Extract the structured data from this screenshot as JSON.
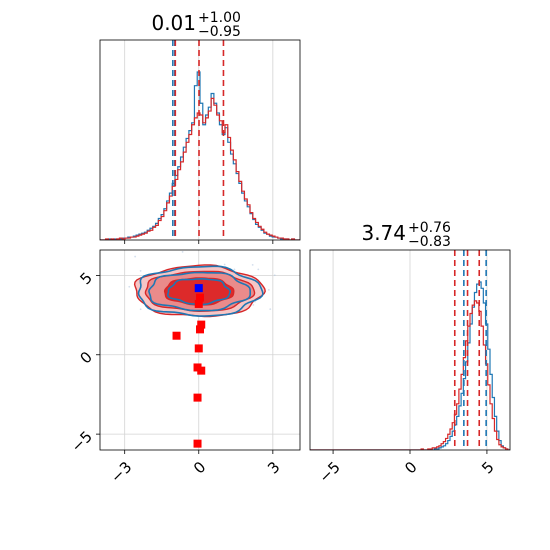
{
  "chart_data": {
    "type": "corner",
    "grid": true,
    "params": [
      {
        "title_value": "0.01",
        "title_upper": "+1.00",
        "title_lower": "−0.95",
        "xlim": [
          -4,
          4.1
        ],
        "ticks": [
          -3,
          0,
          3
        ],
        "tick_labels": [
          "−3",
          "0",
          "3"
        ],
        "quantiles_red": [
          -0.95,
          0.01,
          1.0
        ],
        "quantiles_blue": [
          -1.05,
          -0.97
        ],
        "hist_red": {
          "edges_min": -4,
          "edges_max": 4.1,
          "counts": [
            0,
            0,
            1,
            0,
            1,
            0,
            1,
            2,
            1,
            2,
            2,
            3,
            3,
            4,
            5,
            6,
            7,
            9,
            10,
            13,
            15,
            20,
            24,
            30,
            38,
            45,
            55,
            62,
            72,
            80,
            90,
            100,
            108,
            118,
            125,
            130,
            128,
            120,
            125,
            132,
            145,
            138,
            128,
            122,
            110,
            118,
            105,
            92,
            82,
            70,
            60,
            50,
            42,
            36,
            28,
            22,
            18,
            14,
            11,
            8,
            6,
            5,
            4,
            3,
            2,
            2,
            1,
            1,
            0,
            1,
            0,
            0
          ]
        },
        "hist_blue": {
          "edges_min": -4,
          "edges_max": 4.1,
          "counts": [
            0,
            0,
            0,
            1,
            0,
            1,
            1,
            1,
            2,
            2,
            3,
            3,
            4,
            5,
            6,
            7,
            8,
            10,
            12,
            14,
            17,
            22,
            26,
            32,
            40,
            48,
            58,
            66,
            75,
            85,
            95,
            104,
            112,
            120,
            158,
            172,
            140,
            118,
            128,
            136,
            150,
            140,
            130,
            118,
            108,
            115,
            100,
            88,
            78,
            68,
            58,
            48,
            40,
            34,
            27,
            21,
            16,
            13,
            10,
            7,
            6,
            4,
            3,
            3,
            2,
            1,
            1,
            1,
            0,
            1,
            0,
            0
          ]
        }
      },
      {
        "title_value": "3.74",
        "title_upper": "+0.76",
        "title_lower": "−0.83",
        "xlim": [
          -6.5,
          6.5
        ],
        "ticks": [
          -5,
          0,
          5
        ],
        "tick_labels": [
          "−5",
          "0",
          "5"
        ],
        "quantiles_red": [
          2.91,
          3.74,
          4.5
        ],
        "quantiles_blue": [
          3.5,
          4.95
        ],
        "hist_red": {
          "edges_min": -6.5,
          "edges_max": 6.5,
          "counts": [
            0,
            0,
            0,
            0,
            0,
            0,
            0,
            0,
            0,
            0,
            0,
            0,
            0,
            0,
            0,
            0,
            0,
            0,
            0,
            0,
            0,
            0,
            0,
            0,
            0,
            0,
            0,
            0,
            0,
            0,
            0,
            0,
            0,
            0,
            0,
            0,
            0,
            0,
            0,
            0,
            0,
            0,
            0,
            0,
            0,
            0,
            0,
            0,
            0,
            0,
            1,
            0,
            0,
            1,
            1,
            2,
            2,
            3,
            4,
            6,
            8,
            11,
            15,
            20,
            26,
            34,
            44,
            58,
            72,
            88,
            104,
            118,
            130,
            138,
            142,
            140,
            132,
            118,
            100,
            82,
            62,
            44,
            30,
            18,
            10,
            5,
            3,
            2,
            1,
            0
          ]
        },
        "hist_blue": {
          "edges_min": -6.5,
          "edges_max": 6.5,
          "counts": [
            0,
            0,
            0,
            0,
            0,
            0,
            0,
            0,
            0,
            0,
            0,
            0,
            0,
            0,
            0,
            0,
            0,
            0,
            0,
            0,
            0,
            0,
            0,
            0,
            0,
            0,
            0,
            0,
            0,
            0,
            0,
            0,
            0,
            0,
            0,
            0,
            0,
            0,
            0,
            0,
            0,
            0,
            0,
            0,
            0,
            0,
            0,
            0,
            0,
            0,
            0,
            0,
            0,
            0,
            0,
            0,
            1,
            1,
            2,
            3,
            4,
            6,
            9,
            13,
            18,
            24,
            32,
            42,
            54,
            68,
            84,
            102,
            120,
            136,
            150,
            158,
            160,
            154,
            140,
            120,
            96,
            72,
            50,
            32,
            18,
            9,
            4,
            2,
            1,
            0
          ]
        }
      }
    ],
    "scatter_panel": {
      "x_ticks": [
        -3,
        0,
        3
      ],
      "x_tick_labels": [
        "−3",
        "0",
        "3"
      ],
      "y_ticks": [
        -5,
        0,
        5
      ],
      "y_tick_labels": [
        "−5",
        "0",
        "5"
      ],
      "xlim": [
        -4,
        4.1
      ],
      "ylim": [
        -6,
        6.6
      ],
      "red_markers": [
        {
          "x": 0.0,
          "y": 4.2
        },
        {
          "x": 0.05,
          "y": 3.6
        },
        {
          "x": 0.0,
          "y": 3.2
        },
        {
          "x": 0.1,
          "y": 1.9
        },
        {
          "x": 0.05,
          "y": 1.6
        },
        {
          "x": -0.9,
          "y": 1.2
        },
        {
          "x": 0.0,
          "y": 0.4
        },
        {
          "x": -0.05,
          "y": -0.8
        },
        {
          "x": 0.1,
          "y": -1.0
        },
        {
          "x": -0.05,
          "y": -2.7
        },
        {
          "x": -0.05,
          "y": -5.6
        }
      ],
      "blue_marker": {
        "x": 0.0,
        "y": 4.2
      },
      "red_contour_levels": [
        [
          2.6,
          1.6
        ],
        [
          2.2,
          1.25
        ],
        [
          1.4,
          0.85
        ]
      ],
      "blue_contour_levels": [
        [
          2.5,
          1.55
        ],
        [
          2.05,
          1.2
        ],
        [
          1.25,
          0.8
        ]
      ],
      "contour_center": {
        "x": 0.0,
        "y": 4.0
      }
    },
    "colors": {
      "red": "#d62728",
      "blue": "#1f77b4",
      "marker_red": "#ff0000",
      "marker_blue": "#0000ff",
      "grid": "#d3d3d3",
      "scatter_points": "#b0c4de"
    }
  }
}
